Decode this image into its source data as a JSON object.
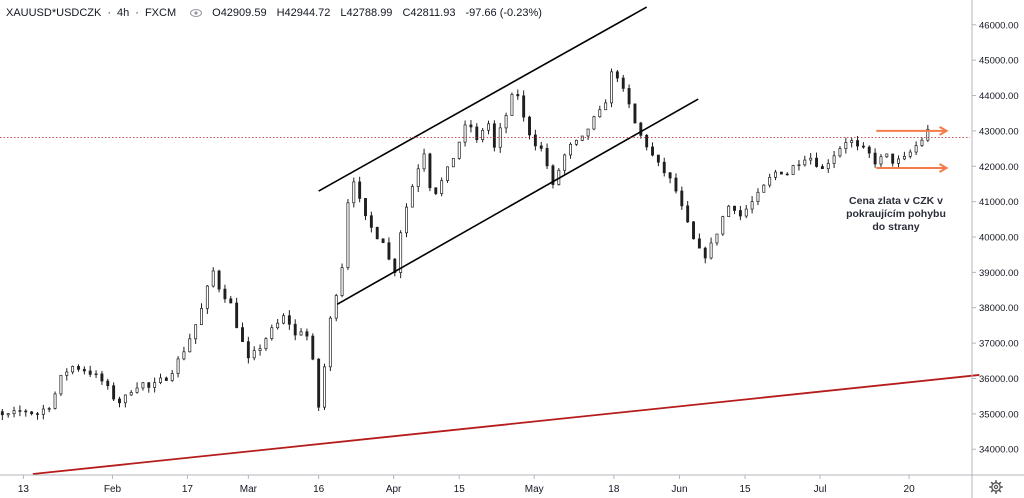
{
  "header": {
    "symbol": "XAUUSD*USDCZK",
    "interval": "4h",
    "exchange": "FXCM",
    "sep": "·",
    "open_label": "O",
    "open": "42909.59",
    "high_label": "H",
    "high": "42944.72",
    "low_label": "L",
    "low": "42788.99",
    "close_label": "C",
    "close": "42811.93",
    "change": "-97.66 (-0.23%)"
  },
  "annotation": {
    "lines": [
      "Cena zlata v CZK v",
      "pokraujícím pohybu",
      "do strany"
    ]
  },
  "chart_data": {
    "type": "candlestick",
    "title": "",
    "xlabel": "",
    "ylabel": "",
    "ylim": [
      33300,
      46700
    ],
    "y_ticks": [
      34000,
      35000,
      36000,
      37000,
      38000,
      39000,
      40000,
      41000,
      42000,
      43000,
      44000,
      45000,
      46000
    ],
    "y_tick_labels": [
      "34000.00",
      "35000.00",
      "36000.00",
      "37000.00",
      "38000.00",
      "39000.00",
      "40000.00",
      "41000.00",
      "42000.00",
      "43000.00",
      "44000.00",
      "45000.00",
      "46000.00"
    ],
    "x_ticks": [
      {
        "label": "13",
        "day": 13
      },
      {
        "label": "Feb",
        "day": 32
      },
      {
        "label": "17",
        "day": 48
      },
      {
        "label": "Mar",
        "day": 61
      },
      {
        "label": "16",
        "day": 76
      },
      {
        "label": "Apr",
        "day": 92
      },
      {
        "label": "15",
        "day": 106
      },
      {
        "label": "May",
        "day": 122
      },
      {
        "label": "18",
        "day": 139
      },
      {
        "label": "Jun",
        "day": 153
      },
      {
        "label": "15",
        "day": 167
      },
      {
        "label": "Jul",
        "day": 183
      },
      {
        "label": "20",
        "day": 202
      }
    ],
    "last_price": 42811.93,
    "path": [
      [
        1,
        36400
      ],
      [
        3,
        35300
      ],
      [
        6,
        35100
      ],
      [
        9,
        34900
      ],
      [
        11,
        35000
      ],
      [
        13,
        35100
      ],
      [
        16,
        35000
      ],
      [
        19,
        35300
      ],
      [
        21,
        36000
      ],
      [
        23,
        36350
      ],
      [
        25,
        36300
      ],
      [
        27,
        36200
      ],
      [
        30,
        35900
      ],
      [
        32,
        35500
      ],
      [
        34,
        35300
      ],
      [
        36,
        35700
      ],
      [
        38,
        35900
      ],
      [
        40,
        35700
      ],
      [
        42,
        35900
      ],
      [
        44,
        36100
      ],
      [
        46,
        36500
      ],
      [
        48,
        37000
      ],
      [
        50,
        37600
      ],
      [
        52,
        38300
      ],
      [
        53,
        39200
      ],
      [
        55,
        38500
      ],
      [
        57,
        38200
      ],
      [
        59,
        37300
      ],
      [
        61,
        36500
      ],
      [
        63,
        36800
      ],
      [
        65,
        37200
      ],
      [
        67,
        37500
      ],
      [
        69,
        37800
      ],
      [
        71,
        37200
      ],
      [
        73,
        37500
      ],
      [
        75,
        36300
      ],
      [
        76,
        35200
      ],
      [
        77,
        36000
      ],
      [
        78,
        37300
      ],
      [
        79,
        38000
      ],
      [
        81,
        39200
      ],
      [
        82,
        40700
      ],
      [
        83,
        42000
      ],
      [
        84,
        41300
      ],
      [
        86,
        40500
      ],
      [
        88,
        40100
      ],
      [
        90,
        39900
      ],
      [
        92,
        38800
      ],
      [
        93,
        39900
      ],
      [
        95,
        41000
      ],
      [
        97,
        41900
      ],
      [
        99,
        42600
      ],
      [
        100,
        41100
      ],
      [
        102,
        41500
      ],
      [
        104,
        42000
      ],
      [
        106,
        42700
      ],
      [
        108,
        43300
      ],
      [
        110,
        42600
      ],
      [
        112,
        43500
      ],
      [
        113,
        42300
      ],
      [
        115,
        43100
      ],
      [
        117,
        43800
      ],
      [
        118,
        44300
      ],
      [
        120,
        43200
      ],
      [
        122,
        42700
      ],
      [
        124,
        42400
      ],
      [
        126,
        41400
      ],
      [
        128,
        42200
      ],
      [
        130,
        42600
      ],
      [
        132,
        42700
      ],
      [
        134,
        43200
      ],
      [
        136,
        43500
      ],
      [
        138,
        44100
      ],
      [
        139,
        45100
      ],
      [
        140,
        44400
      ],
      [
        142,
        43800
      ],
      [
        144,
        43000
      ],
      [
        146,
        42600
      ],
      [
        148,
        42100
      ],
      [
        150,
        41800
      ],
      [
        152,
        41400
      ],
      [
        154,
        40600
      ],
      [
        156,
        39900
      ],
      [
        158,
        39400
      ],
      [
        160,
        39800
      ],
      [
        162,
        40500
      ],
      [
        164,
        41000
      ],
      [
        166,
        40600
      ],
      [
        168,
        40900
      ],
      [
        170,
        41200
      ],
      [
        172,
        41600
      ],
      [
        174,
        41900
      ],
      [
        176,
        41800
      ],
      [
        178,
        42100
      ],
      [
        180,
        42300
      ],
      [
        182,
        42200
      ],
      [
        183,
        41800
      ],
      [
        185,
        42200
      ],
      [
        187,
        42500
      ],
      [
        189,
        42800
      ],
      [
        191,
        42500
      ],
      [
        193,
        42400
      ],
      [
        195,
        42100
      ],
      [
        197,
        42300
      ],
      [
        199,
        42100
      ],
      [
        201,
        42200
      ],
      [
        203,
        42500
      ],
      [
        205,
        42800
      ],
      [
        206,
        43000
      ],
      [
        207,
        42812
      ]
    ],
    "trendlines": [
      {
        "name": "channel-upper",
        "color": "#000000",
        "from": [
          76,
          41300
        ],
        "to": [
          146,
          46500
        ]
      },
      {
        "name": "channel-lower",
        "color": "#000000",
        "from": [
          80,
          38100
        ],
        "to": [
          157,
          43900
        ]
      },
      {
        "name": "support-long",
        "color": "#b71c1c",
        "from": [
          15,
          33300
        ],
        "to": [
          217,
          36100
        ]
      },
      {
        "name": "range-top-arrow",
        "color": "#f57c4a",
        "from": [
          195,
          43000
        ],
        "to": [
          210,
          43000
        ]
      },
      {
        "name": "range-bottom-arrow",
        "color": "#f57c4a",
        "from": [
          195,
          41950
        ],
        "to": [
          210,
          41950
        ]
      }
    ],
    "colors": {
      "up": "#26a69a",
      "down": "#ef5350",
      "candle": "#1f1f1f",
      "axis": "#b2b5be",
      "price_line": "#b71c1c"
    },
    "grid": false,
    "legend": "none"
  }
}
